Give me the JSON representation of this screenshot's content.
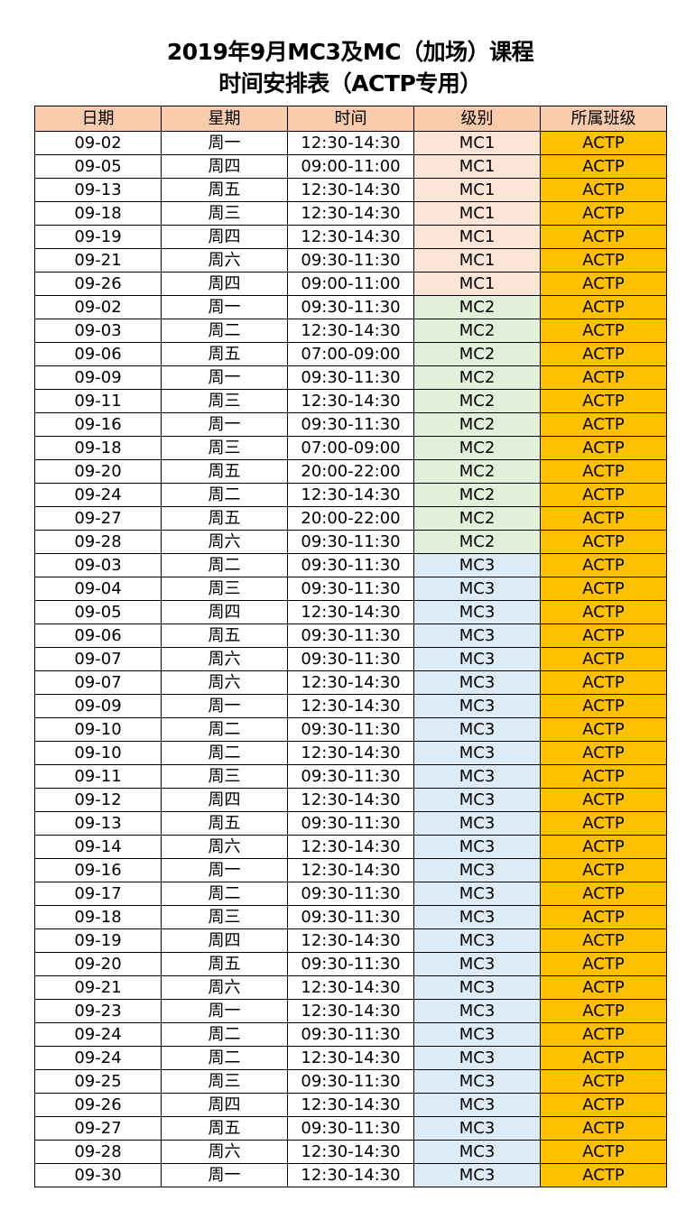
{
  "title": {
    "line1": "2019年9月MC3及MC（加场）课程",
    "line2": "时间安排表（ACTP专用）"
  },
  "colors": {
    "header": "#F8CBAD",
    "MC1": "#FCE4D6",
    "MC2": "#E2EFDA",
    "MC3": "#DDEBF7",
    "ACTP": "#FFC000"
  },
  "columns": [
    "日期",
    "星期",
    "时间",
    "级别",
    "所属班级"
  ],
  "rows": [
    [
      "09-02",
      "周一",
      "12:30-14:30",
      "MC1",
      "ACTP"
    ],
    [
      "09-05",
      "周四",
      "09:00-11:00",
      "MC1",
      "ACTP"
    ],
    [
      "09-13",
      "周五",
      "12:30-14:30",
      "MC1",
      "ACTP"
    ],
    [
      "09-18",
      "周三",
      "12:30-14:30",
      "MC1",
      "ACTP"
    ],
    [
      "09-19",
      "周四",
      "12:30-14:30",
      "MC1",
      "ACTP"
    ],
    [
      "09-21",
      "周六",
      "09:30-11:30",
      "MC1",
      "ACTP"
    ],
    [
      "09-26",
      "周四",
      "09:00-11:00",
      "MC1",
      "ACTP"
    ],
    [
      "09-02",
      "周一",
      "09:30-11:30",
      "MC2",
      "ACTP"
    ],
    [
      "09-03",
      "周二",
      "12:30-14:30",
      "MC2",
      "ACTP"
    ],
    [
      "09-06",
      "周五",
      "07:00-09:00",
      "MC2",
      "ACTP"
    ],
    [
      "09-09",
      "周一",
      "09:30-11:30",
      "MC2",
      "ACTP"
    ],
    [
      "09-11",
      "周三",
      "12:30-14:30",
      "MC2",
      "ACTP"
    ],
    [
      "09-16",
      "周一",
      "09:30-11:30",
      "MC2",
      "ACTP"
    ],
    [
      "09-18",
      "周三",
      "07:00-09:00",
      "MC2",
      "ACTP"
    ],
    [
      "09-20",
      "周五",
      "20:00-22:00",
      "MC2",
      "ACTP"
    ],
    [
      "09-24",
      "周二",
      "12:30-14:30",
      "MC2",
      "ACTP"
    ],
    [
      "09-27",
      "周五",
      "20:00-22:00",
      "MC2",
      "ACTP"
    ],
    [
      "09-28",
      "周六",
      "09:30-11:30",
      "MC2",
      "ACTP"
    ],
    [
      "09-03",
      "周二",
      "09:30-11:30",
      "MC3",
      "ACTP"
    ],
    [
      "09-04",
      "周三",
      "09:30-11:30",
      "MC3",
      "ACTP"
    ],
    [
      "09-05",
      "周四",
      "12:30-14:30",
      "MC3",
      "ACTP"
    ],
    [
      "09-06",
      "周五",
      "09:30-11:30",
      "MC3",
      "ACTP"
    ],
    [
      "09-07",
      "周六",
      "09:30-11:30",
      "MC3",
      "ACTP"
    ],
    [
      "09-07",
      "周六",
      "12:30-14:30",
      "MC3",
      "ACTP"
    ],
    [
      "09-09",
      "周一",
      "12:30-14:30",
      "MC3",
      "ACTP"
    ],
    [
      "09-10",
      "周二",
      "09:30-11:30",
      "MC3",
      "ACTP"
    ],
    [
      "09-10",
      "周二",
      "12:30-14:30",
      "MC3",
      "ACTP"
    ],
    [
      "09-11",
      "周三",
      "09:30-11:30",
      "MC3",
      "ACTP"
    ],
    [
      "09-12",
      "周四",
      "12:30-14:30",
      "MC3",
      "ACTP"
    ],
    [
      "09-13",
      "周五",
      "09:30-11:30",
      "MC3",
      "ACTP"
    ],
    [
      "09-14",
      "周六",
      "12:30-14:30",
      "MC3",
      "ACTP"
    ],
    [
      "09-16",
      "周一",
      "12:30-14:30",
      "MC3",
      "ACTP"
    ],
    [
      "09-17",
      "周二",
      "09:30-11:30",
      "MC3",
      "ACTP"
    ],
    [
      "09-18",
      "周三",
      "09:30-11:30",
      "MC3",
      "ACTP"
    ],
    [
      "09-19",
      "周四",
      "12:30-14:30",
      "MC3",
      "ACTP"
    ],
    [
      "09-20",
      "周五",
      "09:30-11:30",
      "MC3",
      "ACTP"
    ],
    [
      "09-21",
      "周六",
      "12:30-14:30",
      "MC3",
      "ACTP"
    ],
    [
      "09-23",
      "周一",
      "12:30-14:30",
      "MC3",
      "ACTP"
    ],
    [
      "09-24",
      "周二",
      "09:30-11:30",
      "MC3",
      "ACTP"
    ],
    [
      "09-24",
      "周二",
      "12:30-14:30",
      "MC3",
      "ACTP"
    ],
    [
      "09-25",
      "周三",
      "09:30-11:30",
      "MC3",
      "ACTP"
    ],
    [
      "09-26",
      "周四",
      "12:30-14:30",
      "MC3",
      "ACTP"
    ],
    [
      "09-27",
      "周五",
      "09:30-11:30",
      "MC3",
      "ACTP"
    ],
    [
      "09-28",
      "周六",
      "12:30-14:30",
      "MC3",
      "ACTP"
    ],
    [
      "09-30",
      "周一",
      "12:30-14:30",
      "MC3",
      "ACTP"
    ]
  ]
}
